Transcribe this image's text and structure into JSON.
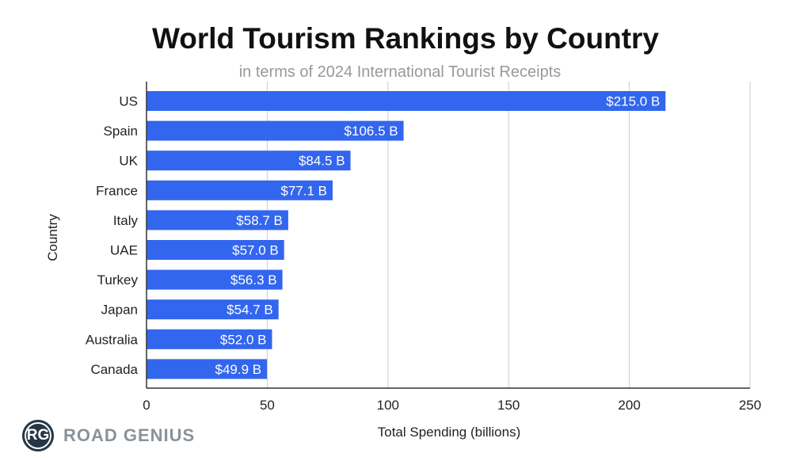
{
  "chart_data": {
    "type": "bar",
    "orientation": "horizontal",
    "title": "World Tourism Rankings by Country",
    "subtitle": "in terms of 2024 International Tourist Receipts",
    "xlabel": "Total Spending (billions)",
    "ylabel": "Country",
    "categories": [
      "US",
      "Spain",
      "UK",
      "France",
      "Italy",
      "UAE",
      "Turkey",
      "Japan",
      "Australia",
      "Canada"
    ],
    "values": [
      215.0,
      106.5,
      84.5,
      77.1,
      58.7,
      57.0,
      56.3,
      54.7,
      52.0,
      49.9
    ],
    "data_labels": [
      "$215.0 B",
      "$106.5 B",
      "$84.5 B",
      "$77.1 B",
      "$58.7 B",
      "$57.0 B",
      "$56.3 B",
      "$54.7 B",
      "$52.0 B",
      "$49.9 B"
    ],
    "xlim": [
      0,
      250
    ],
    "xticks": [
      0,
      50,
      100,
      150,
      200,
      250
    ],
    "grid": true,
    "bar_color": "#3366ee"
  },
  "logo": {
    "initials": "RG",
    "text": "ROAD GENIUS"
  }
}
